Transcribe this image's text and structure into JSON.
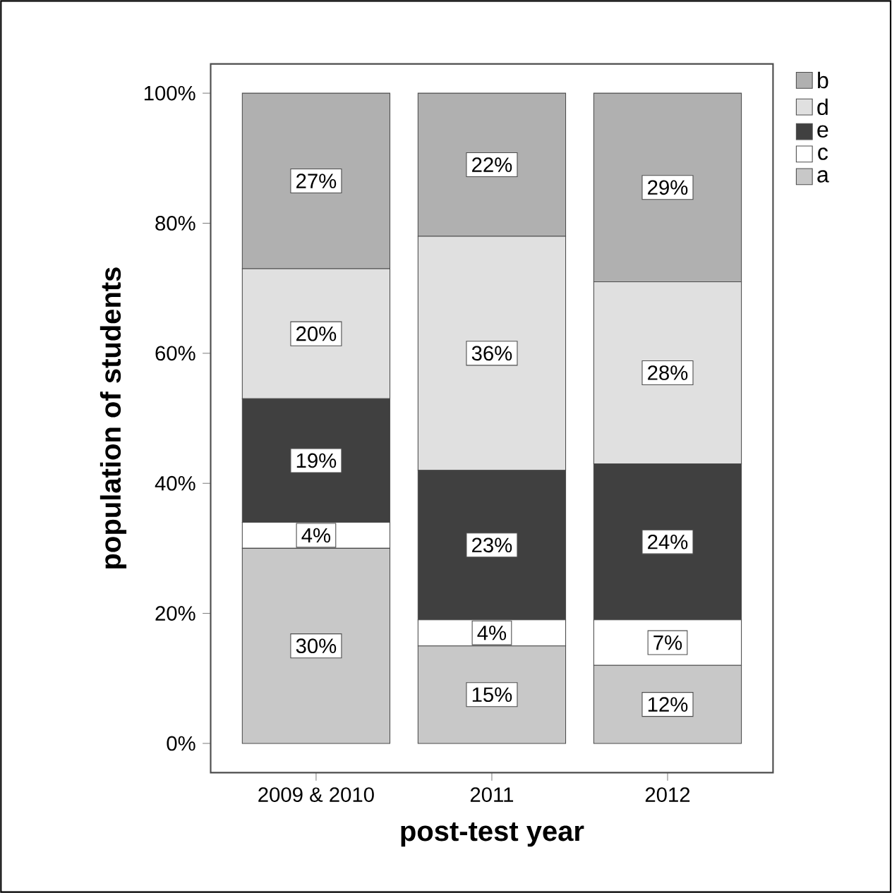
{
  "chart_data": {
    "type": "bar",
    "stacked": true,
    "xlabel": "post-test year",
    "ylabel": "population of students",
    "categories": [
      "2009 & 2010",
      "2011",
      "2012"
    ],
    "series": [
      {
        "name": "a",
        "color": "#c8c8c8",
        "values": [
          30,
          15,
          12
        ],
        "value_labels": [
          "30%",
          "15%",
          "12%"
        ]
      },
      {
        "name": "c",
        "color": "#ffffff",
        "values": [
          4,
          4,
          7
        ],
        "value_labels": [
          "4%",
          "4%",
          "7%"
        ]
      },
      {
        "name": "e",
        "color": "#404040",
        "values": [
          19,
          23,
          24
        ],
        "value_labels": [
          "19%",
          "23%",
          "24%"
        ]
      },
      {
        "name": "d",
        "color": "#e0e0e0",
        "values": [
          20,
          36,
          28
        ],
        "value_labels": [
          "20%",
          "36%",
          "28%"
        ]
      },
      {
        "name": "b",
        "color": "#b0b0b0",
        "values": [
          27,
          22,
          29
        ],
        "value_labels": [
          "27%",
          "22%",
          "29%"
        ]
      }
    ],
    "ylim": [
      -4.5,
      104.5
    ],
    "yticks": [
      {
        "value": 0,
        "label": "0%"
      },
      {
        "value": 20,
        "label": "20%"
      },
      {
        "value": 40,
        "label": "40%"
      },
      {
        "value": 60,
        "label": "60%"
      },
      {
        "value": 80,
        "label": "80%"
      },
      {
        "value": 100,
        "label": "100%"
      }
    ],
    "legend": "top right",
    "grid": false
  }
}
